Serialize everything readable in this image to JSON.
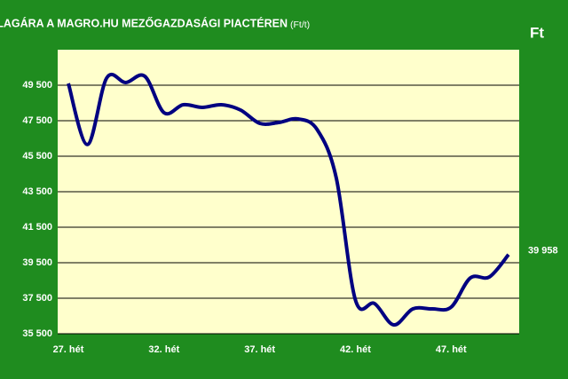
{
  "chart_data": {
    "type": "line",
    "title": "A KUKORICA ÁTLAGÁRA A MAGRO.HU MEZŐGAZDASÁGI PIACTÉREN",
    "title_unit": "(Ft/t)",
    "y_unit": "Ft",
    "categories": [
      "27. hét",
      null,
      null,
      null,
      null,
      "32. hét",
      null,
      null,
      null,
      null,
      "37. hét",
      null,
      null,
      null,
      null,
      "42. hét",
      null,
      null,
      null,
      null,
      "47. hét",
      null,
      null,
      null
    ],
    "series": [
      {
        "name": "Ft",
        "color": "#000080",
        "values": [
          49600,
          46160,
          49900,
          49650,
          50000,
          47950,
          48400,
          48250,
          48400,
          48100,
          47350,
          47400,
          47600,
          47000,
          44270,
          37400,
          37200,
          36000,
          36900,
          36900,
          37000,
          38640,
          38700,
          39958
        ],
        "value_labels": [
          null,
          null,
          null,
          null,
          null,
          null,
          null,
          null,
          null,
          null,
          null,
          null,
          null,
          null,
          null,
          null,
          null,
          null,
          null,
          null,
          null,
          null,
          null,
          "39 958"
        ]
      }
    ],
    "ylim": [
      35500,
      51500
    ],
    "yticks": [
      {
        "value": 35500,
        "label": "35 500"
      },
      {
        "value": 37500,
        "label": "37 500"
      },
      {
        "value": 39500,
        "label": "39 500"
      },
      {
        "value": 41500,
        "label": "41 500"
      },
      {
        "value": 43500,
        "label": "43 500"
      },
      {
        "value": 45500,
        "label": "45 500"
      },
      {
        "value": 47500,
        "label": "47 500"
      },
      {
        "value": 49500,
        "label": "49 500"
      }
    ],
    "grid": true
  }
}
